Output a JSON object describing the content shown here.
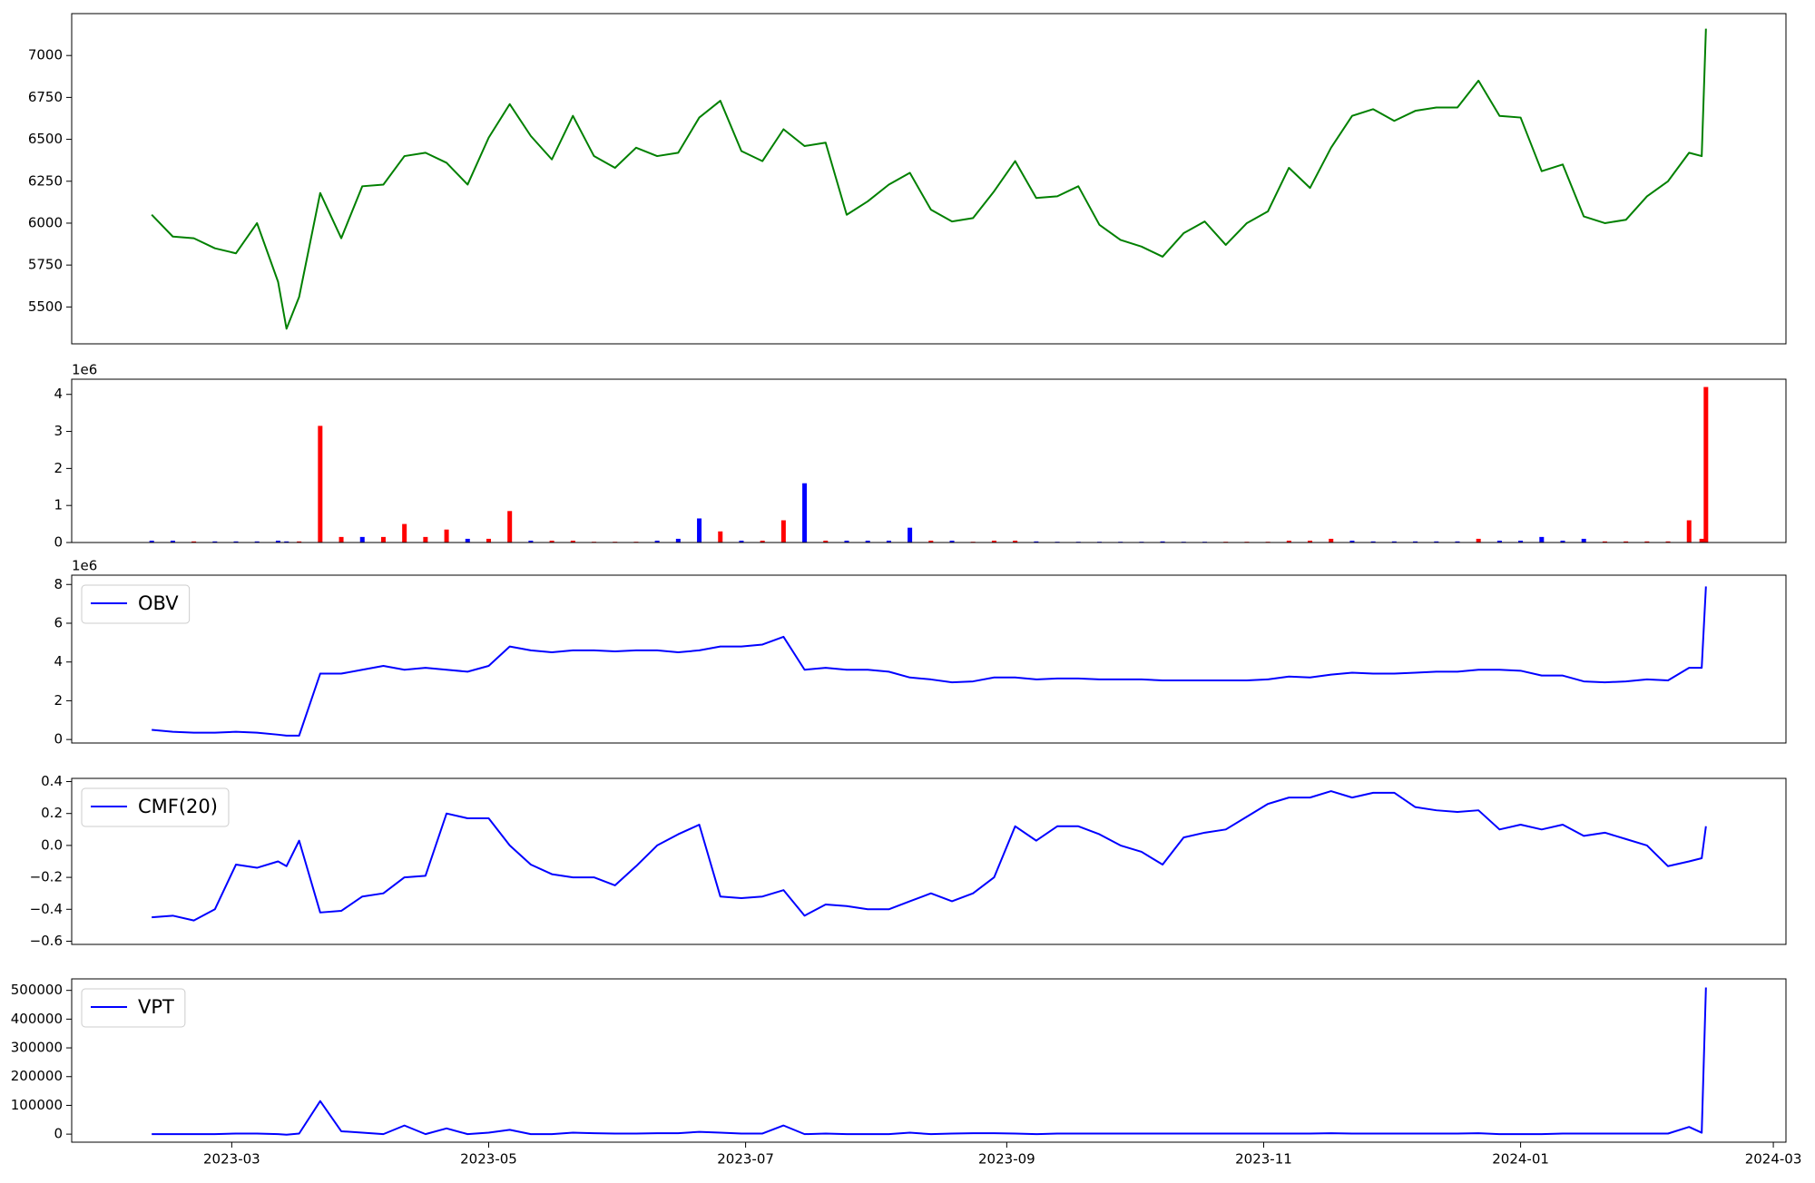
{
  "chart_data": [
    {
      "type": "line",
      "color": "#008000",
      "x": [
        "2023-02-10",
        "2023-02-15",
        "2023-02-20",
        "2023-02-25",
        "2023-03-02",
        "2023-03-07",
        "2023-03-12",
        "2023-03-14",
        "2023-03-17",
        "2023-03-22",
        "2023-03-27",
        "2023-04-01",
        "2023-04-06",
        "2023-04-11",
        "2023-04-16",
        "2023-04-21",
        "2023-04-26",
        "2023-05-01",
        "2023-05-06",
        "2023-05-11",
        "2023-05-16",
        "2023-05-21",
        "2023-05-26",
        "2023-05-31",
        "2023-06-05",
        "2023-06-10",
        "2023-06-15",
        "2023-06-20",
        "2023-06-25",
        "2023-06-30",
        "2023-07-05",
        "2023-07-10",
        "2023-07-15",
        "2023-07-20",
        "2023-07-25",
        "2023-07-30",
        "2023-08-04",
        "2023-08-09",
        "2023-08-14",
        "2023-08-19",
        "2023-08-24",
        "2023-08-29",
        "2023-09-03",
        "2023-09-08",
        "2023-09-13",
        "2023-09-18",
        "2023-09-23",
        "2023-09-28",
        "2023-10-03",
        "2023-10-08",
        "2023-10-13",
        "2023-10-18",
        "2023-10-23",
        "2023-10-28",
        "2023-11-02",
        "2023-11-07",
        "2023-11-12",
        "2023-11-17",
        "2023-11-22",
        "2023-11-27",
        "2023-12-02",
        "2023-12-07",
        "2023-12-12",
        "2023-12-17",
        "2023-12-22",
        "2023-12-27",
        "2024-01-01",
        "2024-01-06",
        "2024-01-11",
        "2024-01-16",
        "2024-01-21",
        "2024-01-26",
        "2024-01-31",
        "2024-02-05",
        "2024-02-10",
        "2024-02-13",
        "2024-02-14"
      ],
      "values": [
        6050,
        5920,
        5910,
        5850,
        5820,
        6000,
        5650,
        5370,
        5560,
        6180,
        5910,
        6220,
        6230,
        6400,
        6420,
        6360,
        6230,
        6510,
        6710,
        6520,
        6380,
        6640,
        6400,
        6330,
        6450,
        6400,
        6420,
        6630,
        6730,
        6430,
        6370,
        6560,
        6460,
        6480,
        6050,
        6130,
        6230,
        6300,
        6080,
        6010,
        6030,
        6190,
        6370,
        6150,
        6160,
        6220,
        5990,
        5900,
        5860,
        5800,
        5940,
        6010,
        5870,
        6000,
        6070,
        6330,
        6210,
        6450,
        6640,
        6680,
        6610,
        6670,
        6690,
        6690,
        6850,
        6640,
        6630,
        6310,
        6350,
        6040,
        6000,
        6020,
        6160,
        6250,
        6420,
        6400,
        7160
      ],
      "xlim": [
        "2023-01-22",
        "2024-03-04"
      ],
      "ylim": [
        5280,
        7250
      ],
      "yticks": [
        5500,
        5750,
        6000,
        6250,
        6500,
        6750,
        7000
      ]
    },
    {
      "type": "bar",
      "offset_label": "1e6",
      "x": [
        "2023-02-10",
        "2023-02-15",
        "2023-02-20",
        "2023-02-25",
        "2023-03-02",
        "2023-03-07",
        "2023-03-12",
        "2023-03-14",
        "2023-03-17",
        "2023-03-22",
        "2023-03-27",
        "2023-04-01",
        "2023-04-06",
        "2023-04-11",
        "2023-04-16",
        "2023-04-21",
        "2023-04-26",
        "2023-05-01",
        "2023-05-06",
        "2023-05-11",
        "2023-05-16",
        "2023-05-21",
        "2023-05-26",
        "2023-05-31",
        "2023-06-05",
        "2023-06-10",
        "2023-06-15",
        "2023-06-20",
        "2023-06-25",
        "2023-06-30",
        "2023-07-05",
        "2023-07-10",
        "2023-07-15",
        "2023-07-20",
        "2023-07-25",
        "2023-07-30",
        "2023-08-04",
        "2023-08-09",
        "2023-08-14",
        "2023-08-19",
        "2023-08-24",
        "2023-08-29",
        "2023-09-03",
        "2023-09-08",
        "2023-09-13",
        "2023-09-18",
        "2023-09-23",
        "2023-09-28",
        "2023-10-03",
        "2023-10-08",
        "2023-10-13",
        "2023-10-18",
        "2023-10-23",
        "2023-10-28",
        "2023-11-02",
        "2023-11-07",
        "2023-11-12",
        "2023-11-17",
        "2023-11-22",
        "2023-11-27",
        "2023-12-02",
        "2023-12-07",
        "2023-12-12",
        "2023-12-17",
        "2023-12-22",
        "2023-12-27",
        "2024-01-01",
        "2024-01-06",
        "2024-01-11",
        "2024-01-16",
        "2024-01-21",
        "2024-01-26",
        "2024-01-31",
        "2024-02-05",
        "2024-02-10",
        "2024-02-13",
        "2024-02-14"
      ],
      "values": [
        0.05,
        0.05,
        0.03,
        0.03,
        0.03,
        0.03,
        0.05,
        0.03,
        0.03,
        3.15,
        0.15,
        0.15,
        0.15,
        0.5,
        0.15,
        0.35,
        0.1,
        0.1,
        0.85,
        0.05,
        0.05,
        0.05,
        0.02,
        0.02,
        0.02,
        0.05,
        0.1,
        0.65,
        0.3,
        0.05,
        0.05,
        0.6,
        1.6,
        0.05,
        0.05,
        0.05,
        0.05,
        0.4,
        0.05,
        0.05,
        0.02,
        0.05,
        0.05,
        0.03,
        0.02,
        0.02,
        0.02,
        0.02,
        0.02,
        0.03,
        0.02,
        0.02,
        0.02,
        0.02,
        0.02,
        0.05,
        0.05,
        0.1,
        0.05,
        0.03,
        0.03,
        0.03,
        0.03,
        0.03,
        0.1,
        0.05,
        0.05,
        0.15,
        0.05,
        0.1,
        0.03,
        0.03,
        0.03,
        0.03,
        0.6,
        0.1,
        4.2
      ],
      "colors": [
        "#0000ff",
        "#0000ff",
        "#ff0000",
        "#0000ff",
        "#0000ff",
        "#0000ff",
        "#0000ff",
        "#0000ff",
        "#ff0000",
        "#ff0000",
        "#ff0000",
        "#0000ff",
        "#ff0000",
        "#ff0000",
        "#ff0000",
        "#ff0000",
        "#0000ff",
        "#ff0000",
        "#ff0000",
        "#0000ff",
        "#ff0000",
        "#ff0000",
        "#ff0000",
        "#ff0000",
        "#ff0000",
        "#0000ff",
        "#0000ff",
        "#0000ff",
        "#ff0000",
        "#0000ff",
        "#ff0000",
        "#ff0000",
        "#0000ff",
        "#ff0000",
        "#0000ff",
        "#0000ff",
        "#0000ff",
        "#0000ff",
        "#ff0000",
        "#0000ff",
        "#ff0000",
        "#ff0000",
        "#ff0000",
        "#0000ff",
        "#0000ff",
        "#0000ff",
        "#0000ff",
        "#0000ff",
        "#0000ff",
        "#0000ff",
        "#0000ff",
        "#0000ff",
        "#ff0000",
        "#ff0000",
        "#ff0000",
        "#ff0000",
        "#ff0000",
        "#ff0000",
        "#0000ff",
        "#0000ff",
        "#0000ff",
        "#0000ff",
        "#0000ff",
        "#0000ff",
        "#ff0000",
        "#0000ff",
        "#0000ff",
        "#0000ff",
        "#0000ff",
        "#0000ff",
        "#ff0000",
        "#ff0000",
        "#ff0000",
        "#ff0000",
        "#ff0000",
        "#ff0000",
        "#ff0000"
      ],
      "xlim": [
        "2023-01-22",
        "2024-03-04"
      ],
      "ylim": [
        0,
        4.41
      ],
      "yticks": [
        0,
        1,
        2,
        3,
        4
      ]
    },
    {
      "type": "line",
      "offset_label": "1e6",
      "legend": "upper left",
      "x": [
        "2023-02-10",
        "2023-02-15",
        "2023-02-20",
        "2023-02-25",
        "2023-03-02",
        "2023-03-07",
        "2023-03-12",
        "2023-03-14",
        "2023-03-17",
        "2023-03-22",
        "2023-03-27",
        "2023-04-01",
        "2023-04-06",
        "2023-04-11",
        "2023-04-16",
        "2023-04-21",
        "2023-04-26",
        "2023-05-01",
        "2023-05-06",
        "2023-05-11",
        "2023-05-16",
        "2023-05-21",
        "2023-05-26",
        "2023-05-31",
        "2023-06-05",
        "2023-06-10",
        "2023-06-15",
        "2023-06-20",
        "2023-06-25",
        "2023-06-30",
        "2023-07-05",
        "2023-07-10",
        "2023-07-15",
        "2023-07-20",
        "2023-07-25",
        "2023-07-30",
        "2023-08-04",
        "2023-08-09",
        "2023-08-14",
        "2023-08-19",
        "2023-08-24",
        "2023-08-29",
        "2023-09-03",
        "2023-09-08",
        "2023-09-13",
        "2023-09-18",
        "2023-09-23",
        "2023-09-28",
        "2023-10-03",
        "2023-10-08",
        "2023-10-13",
        "2023-10-18",
        "2023-10-23",
        "2023-10-28",
        "2023-11-02",
        "2023-11-07",
        "2023-11-12",
        "2023-11-17",
        "2023-11-22",
        "2023-11-27",
        "2023-12-02",
        "2023-12-07",
        "2023-12-12",
        "2023-12-17",
        "2023-12-22",
        "2023-12-27",
        "2024-01-01",
        "2024-01-06",
        "2024-01-11",
        "2024-01-16",
        "2024-01-21",
        "2024-01-26",
        "2024-01-31",
        "2024-02-05",
        "2024-02-10",
        "2024-02-13",
        "2024-02-14"
      ],
      "series": [
        {
          "name": "OBV",
          "color": "#0000ff",
          "values": [
            0.5,
            0.4,
            0.35,
            0.35,
            0.4,
            0.35,
            0.25,
            0.2,
            0.2,
            3.4,
            3.4,
            3.6,
            3.8,
            3.6,
            3.7,
            3.6,
            3.5,
            3.8,
            4.8,
            4.6,
            4.5,
            4.6,
            4.6,
            4.55,
            4.6,
            4.6,
            4.5,
            4.6,
            4.8,
            4.8,
            4.9,
            5.3,
            3.6,
            3.7,
            3.6,
            3.6,
            3.5,
            3.2,
            3.1,
            2.95,
            3.0,
            3.2,
            3.2,
            3.1,
            3.15,
            3.15,
            3.1,
            3.1,
            3.1,
            3.05,
            3.05,
            3.05,
            3.05,
            3.05,
            3.1,
            3.25,
            3.2,
            3.35,
            3.45,
            3.4,
            3.4,
            3.45,
            3.5,
            3.5,
            3.6,
            3.6,
            3.55,
            3.3,
            3.3,
            3.0,
            2.95,
            3.0,
            3.1,
            3.05,
            3.7,
            3.7,
            7.9
          ]
        }
      ],
      "xlim": [
        "2023-01-22",
        "2024-03-04"
      ],
      "ylim": [
        -0.18,
        8.48
      ],
      "yticks": [
        0,
        2,
        4,
        6,
        8
      ]
    },
    {
      "type": "line",
      "legend": "upper left",
      "x": [
        "2023-02-10",
        "2023-02-15",
        "2023-02-20",
        "2023-02-25",
        "2023-03-02",
        "2023-03-07",
        "2023-03-12",
        "2023-03-14",
        "2023-03-17",
        "2023-03-22",
        "2023-03-27",
        "2023-04-01",
        "2023-04-06",
        "2023-04-11",
        "2023-04-16",
        "2023-04-21",
        "2023-04-26",
        "2023-05-01",
        "2023-05-06",
        "2023-05-11",
        "2023-05-16",
        "2023-05-21",
        "2023-05-26",
        "2023-05-31",
        "2023-06-05",
        "2023-06-10",
        "2023-06-15",
        "2023-06-20",
        "2023-06-25",
        "2023-06-30",
        "2023-07-05",
        "2023-07-10",
        "2023-07-15",
        "2023-07-20",
        "2023-07-25",
        "2023-07-30",
        "2023-08-04",
        "2023-08-09",
        "2023-08-14",
        "2023-08-19",
        "2023-08-24",
        "2023-08-29",
        "2023-09-03",
        "2023-09-08",
        "2023-09-13",
        "2023-09-18",
        "2023-09-23",
        "2023-09-28",
        "2023-10-03",
        "2023-10-08",
        "2023-10-13",
        "2023-10-18",
        "2023-10-23",
        "2023-10-28",
        "2023-11-02",
        "2023-11-07",
        "2023-11-12",
        "2023-11-17",
        "2023-11-22",
        "2023-11-27",
        "2023-12-02",
        "2023-12-07",
        "2023-12-12",
        "2023-12-17",
        "2023-12-22",
        "2023-12-27",
        "2024-01-01",
        "2024-01-06",
        "2024-01-11",
        "2024-01-16",
        "2024-01-21",
        "2024-01-26",
        "2024-01-31",
        "2024-02-05",
        "2024-02-10",
        "2024-02-13",
        "2024-02-14"
      ],
      "series": [
        {
          "name": "CMF(20)",
          "color": "#0000ff",
          "values": [
            -0.45,
            -0.44,
            -0.47,
            -0.4,
            -0.12,
            -0.14,
            -0.1,
            -0.13,
            0.03,
            -0.42,
            -0.41,
            -0.32,
            -0.3,
            -0.2,
            -0.19,
            0.2,
            0.17,
            0.17,
            0.0,
            -0.12,
            -0.18,
            -0.2,
            -0.2,
            -0.25,
            -0.13,
            0.0,
            0.07,
            0.13,
            -0.32,
            -0.33,
            -0.32,
            -0.28,
            -0.44,
            -0.37,
            -0.38,
            -0.4,
            -0.4,
            -0.35,
            -0.3,
            -0.35,
            -0.3,
            -0.2,
            0.12,
            0.03,
            0.12,
            0.12,
            0.07,
            0.0,
            -0.04,
            -0.12,
            0.05,
            0.08,
            0.1,
            0.18,
            0.26,
            0.3,
            0.3,
            0.34,
            0.3,
            0.33,
            0.33,
            0.24,
            0.22,
            0.21,
            0.22,
            0.1,
            0.13,
            0.1,
            0.13,
            0.06,
            0.08,
            0.04,
            0.0,
            -0.13,
            -0.1,
            -0.08,
            0.12
          ]
        }
      ],
      "xlim": [
        "2023-01-22",
        "2024-03-04"
      ],
      "ylim": [
        -0.62,
        0.42
      ],
      "yticks": [
        {
          "value": -0.6,
          "label": "−0.6"
        },
        {
          "value": -0.4,
          "label": "−0.4"
        },
        {
          "value": -0.2,
          "label": "−0.2"
        },
        {
          "value": 0,
          "label": "0.0"
        },
        0.2,
        0.4
      ]
    },
    {
      "type": "line",
      "legend": "upper left",
      "x": [
        "2023-02-10",
        "2023-02-15",
        "2023-02-20",
        "2023-02-25",
        "2023-03-02",
        "2023-03-07",
        "2023-03-12",
        "2023-03-14",
        "2023-03-17",
        "2023-03-22",
        "2023-03-27",
        "2023-04-01",
        "2023-04-06",
        "2023-04-11",
        "2023-04-16",
        "2023-04-21",
        "2023-04-26",
        "2023-05-01",
        "2023-05-06",
        "2023-05-11",
        "2023-05-16",
        "2023-05-21",
        "2023-05-26",
        "2023-05-31",
        "2023-06-05",
        "2023-06-10",
        "2023-06-15",
        "2023-06-20",
        "2023-06-25",
        "2023-06-30",
        "2023-07-05",
        "2023-07-10",
        "2023-07-15",
        "2023-07-20",
        "2023-07-25",
        "2023-07-30",
        "2023-08-04",
        "2023-08-09",
        "2023-08-14",
        "2023-08-19",
        "2023-08-24",
        "2023-08-29",
        "2023-09-03",
        "2023-09-08",
        "2023-09-13",
        "2023-09-18",
        "2023-09-23",
        "2023-09-28",
        "2023-10-03",
        "2023-10-08",
        "2023-10-13",
        "2023-10-18",
        "2023-10-23",
        "2023-10-28",
        "2023-11-02",
        "2023-11-07",
        "2023-11-12",
        "2023-11-17",
        "2023-11-22",
        "2023-11-27",
        "2023-12-02",
        "2023-12-07",
        "2023-12-12",
        "2023-12-17",
        "2023-12-22",
        "2023-12-27",
        "2024-01-01",
        "2024-01-06",
        "2024-01-11",
        "2024-01-16",
        "2024-01-21",
        "2024-01-26",
        "2024-01-31",
        "2024-02-05",
        "2024-02-10",
        "2024-02-13",
        "2024-02-14"
      ],
      "series": [
        {
          "name": "VPT",
          "color": "#0000ff",
          "values": [
            0,
            0,
            0,
            0,
            2000,
            2000,
            0,
            -2000,
            2000,
            115000,
            10000,
            5000,
            0,
            30000,
            0,
            20000,
            0,
            5000,
            15000,
            0,
            0,
            5000,
            3000,
            2000,
            2000,
            3000,
            3000,
            8000,
            5000,
            2000,
            2000,
            30000,
            0,
            2000,
            0,
            0,
            0,
            5000,
            0,
            2000,
            3000,
            3000,
            2000,
            0,
            2000,
            2000,
            2000,
            2000,
            2000,
            2000,
            2000,
            2000,
            2000,
            2000,
            2000,
            2000,
            2000,
            3000,
            2000,
            2000,
            2000,
            2000,
            2000,
            2000,
            3000,
            0,
            0,
            0,
            2000,
            2000,
            2000,
            2000,
            2000,
            2000,
            25000,
            5000,
            510000
          ]
        }
      ],
      "xlim": [
        "2023-01-22",
        "2024-03-04"
      ],
      "ylim": [
        -28000,
        540000
      ],
      "yticks": [
        0,
        100000,
        200000,
        300000,
        400000,
        500000
      ],
      "xticks": [
        {
          "value": "2023-03-01",
          "label": "2023-03"
        },
        {
          "value": "2023-05-01",
          "label": "2023-05"
        },
        {
          "value": "2023-07-01",
          "label": "2023-07"
        },
        {
          "value": "2023-09-01",
          "label": "2023-09"
        },
        {
          "value": "2023-11-01",
          "label": "2023-11"
        },
        {
          "value": "2024-01-01",
          "label": "2024-01"
        },
        {
          "value": "2024-03-01",
          "label": "2024-03"
        }
      ]
    }
  ]
}
